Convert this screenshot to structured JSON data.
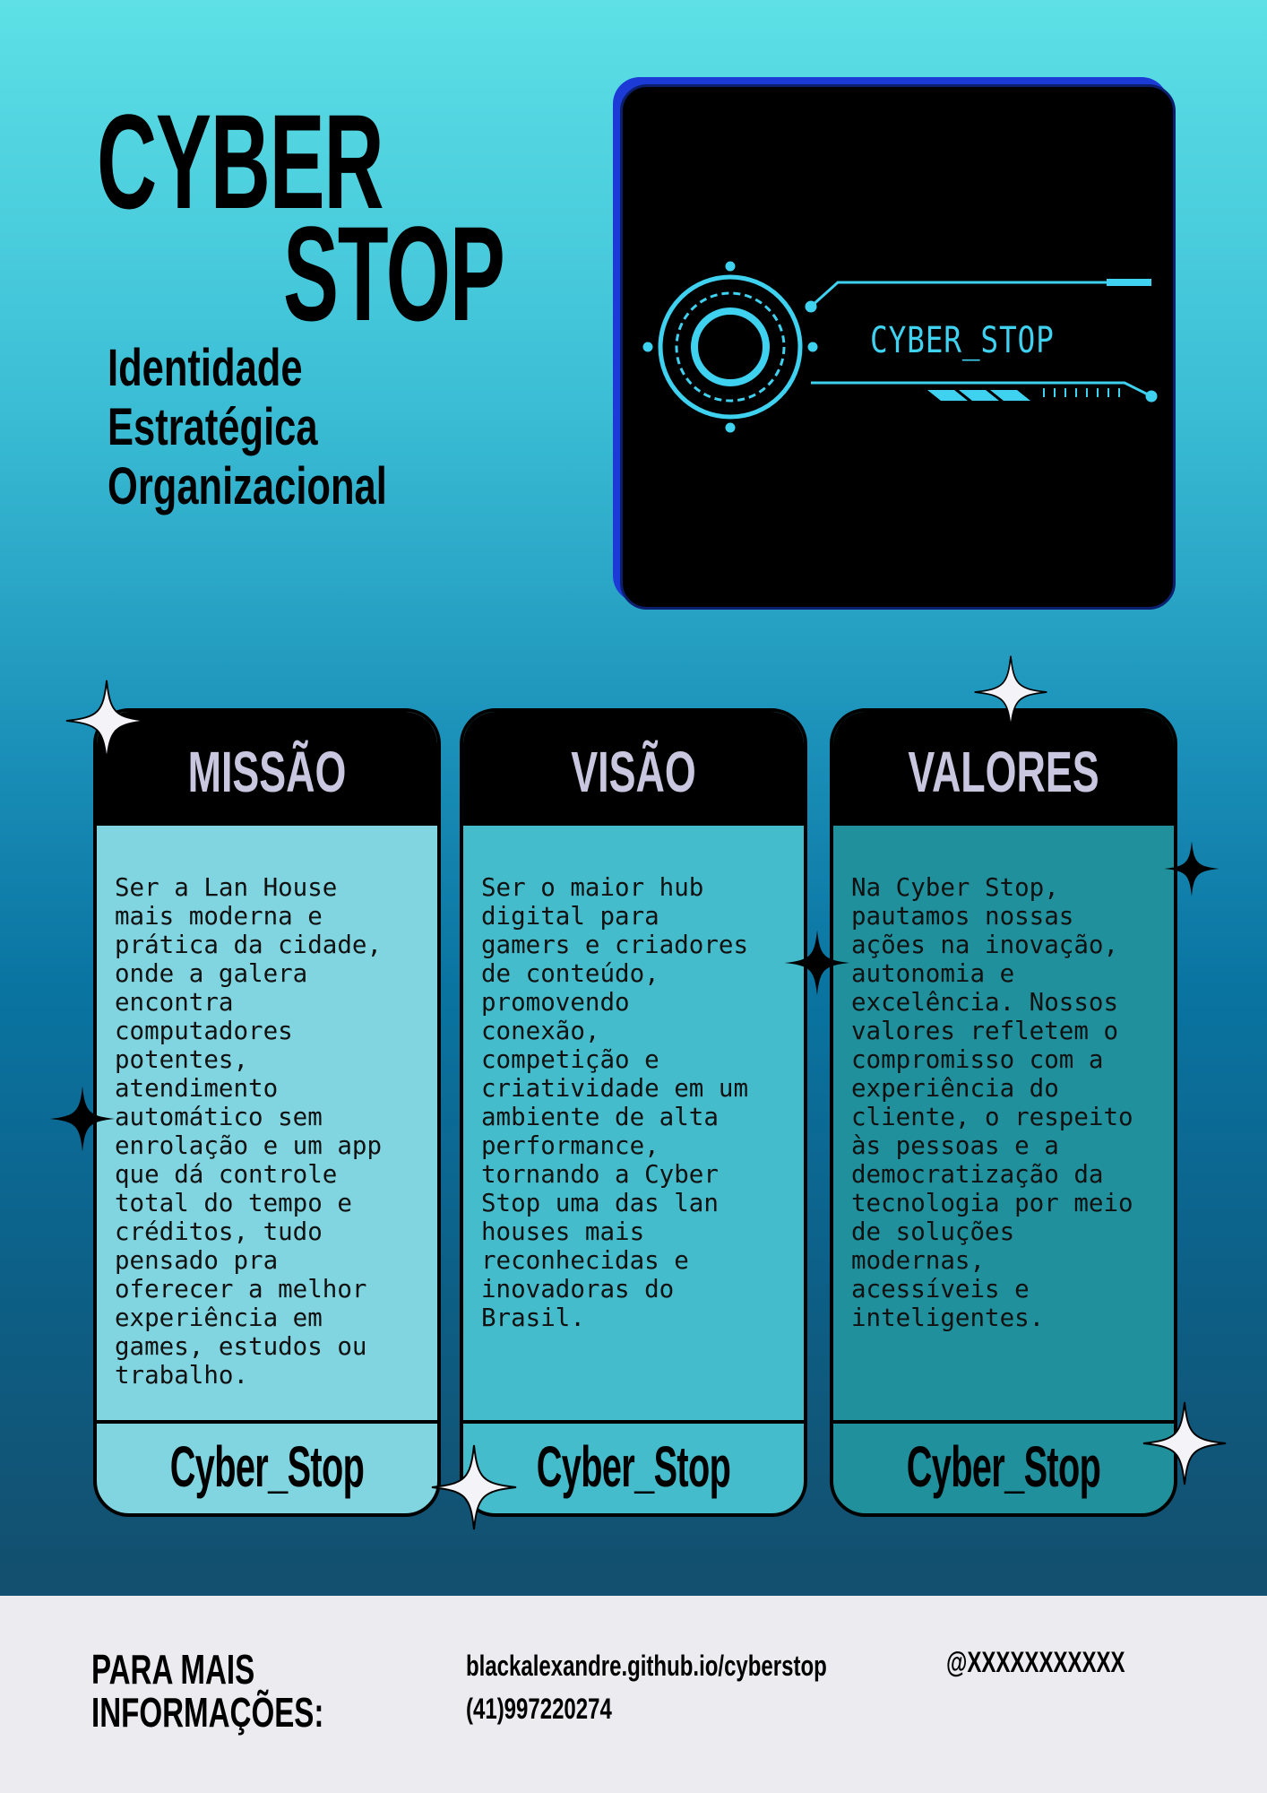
{
  "header": {
    "title_line1": "CYBER",
    "title_line2": "STOP",
    "subtitle_lines": [
      "Identidade",
      "Estratégica",
      "Organizacional"
    ]
  },
  "logo": {
    "text": "CYBER_STOP",
    "accent_color": "#3fd1f0",
    "background_color": "#000000"
  },
  "cards": [
    {
      "title": "MISSÃO",
      "body": "Ser a Lan House\nmais moderna e\nprática da cidade,\nonde a galera\nencontra\ncomputadores\npotentes,\natendimento\nautomático sem\nenrolação e um app\nque dá controle\ntotal do tempo e\ncréditos, tudo\npensado pra\noferecer a melhor\nexperiência em\ngames, estudos ou\ntrabalho.",
      "footer": "Cyber_Stop",
      "color": "#80d5e0"
    },
    {
      "title": "VISÃO",
      "body": "Ser o maior hub\ndigital para\ngamers e criadores\nde conteúdo,\npromovendo\nconexão,\ncompetição e\ncriatividade em um\nambiente de alta\nperformance,\ntornando a Cyber\nStop uma das lan\nhouses mais\nreconhecidas e\ninovadoras do\nBrasil.",
      "footer": "Cyber_Stop",
      "color": "#45bccb"
    },
    {
      "title": "VALORES",
      "body": "Na Cyber Stop,\npautamos nossas\nações na inovação,\nautonomia e\nexcelência. Nossos\nvalores refletem o\ncompromisso com a\nexperiência do\ncliente, o respeito\nàs pessoas e a\ndemocratização da\ntecnologia por meio\nde soluções\nmodernas,\nacessíveis e\ninteligentes.",
      "footer": "Cyber_Stop",
      "color": "#20909c"
    }
  ],
  "footer": {
    "heading_line1": "PARA MAIS",
    "heading_line2": "INFORMAÇÕES:",
    "website": "blackalexandre.github.io/cyberstop",
    "phone": "(41)997220274",
    "handle": "@XXXXXXXXXXX"
  },
  "icons": [
    "sparkle-icon-white",
    "sparkle-icon-black",
    "target-ring-icon"
  ]
}
